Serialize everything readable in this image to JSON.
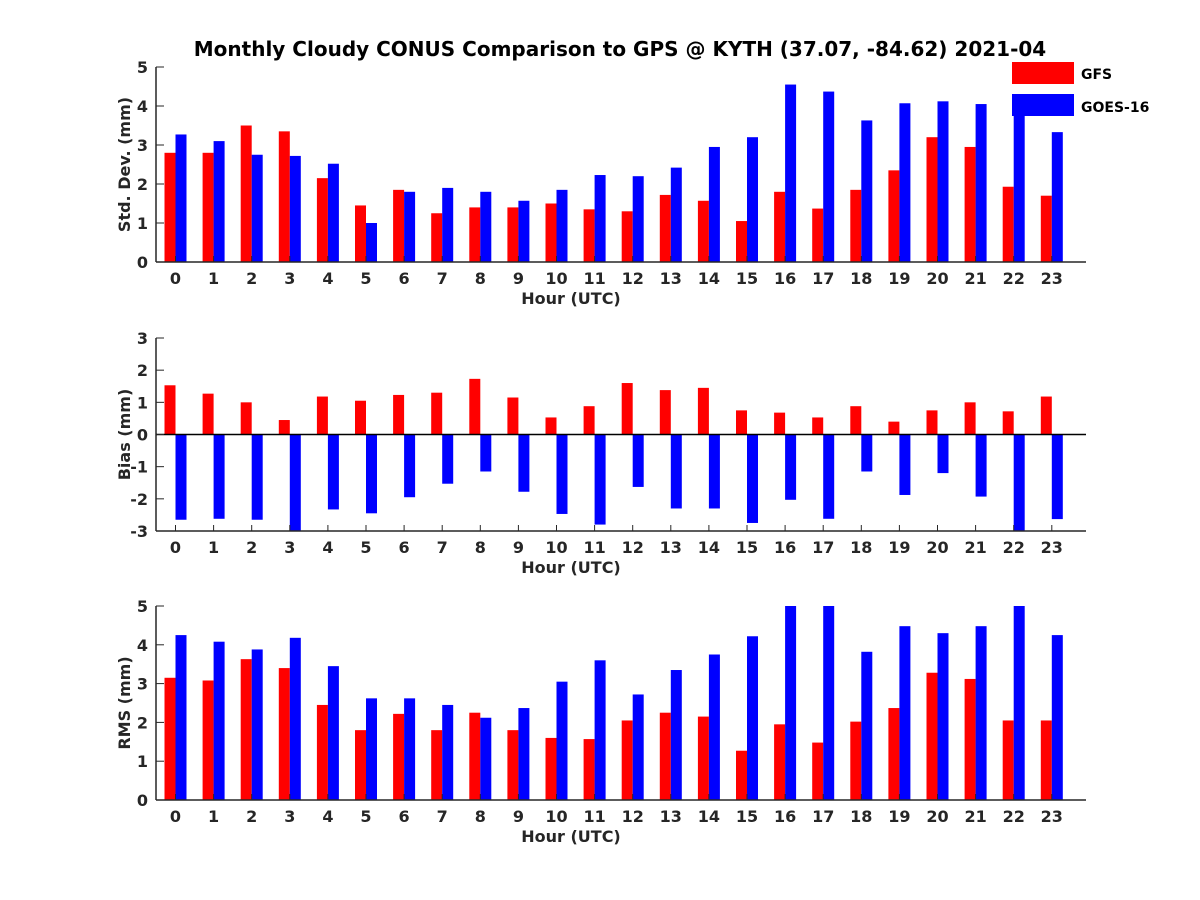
{
  "figure_title": "Monthly Cloudy CONUS Comparison to GPS @ KYTH (37.07, -84.62) 2021-04",
  "legend": {
    "position": "top-right",
    "entries": [
      {
        "label": "GFS",
        "color": "#ff0000"
      },
      {
        "label": "GOES-16",
        "color": "#0000ff"
      }
    ]
  },
  "chart_data": [
    {
      "type": "bar",
      "xlabel": "Hour (UTC)",
      "ylabel": "Std. Dev. (mm)",
      "ylim": [
        0,
        5
      ],
      "yticks": [
        0,
        1,
        2,
        3,
        4,
        5
      ],
      "categories": [
        "0",
        "1",
        "2",
        "3",
        "4",
        "5",
        "6",
        "7",
        "8",
        "9",
        "10",
        "11",
        "12",
        "13",
        "14",
        "15",
        "16",
        "17",
        "18",
        "19",
        "20",
        "21",
        "22",
        "23"
      ],
      "series": [
        {
          "name": "GFS",
          "color": "#ff0000",
          "values": [
            2.8,
            2.8,
            3.5,
            3.35,
            2.15,
            1.45,
            1.85,
            1.25,
            1.4,
            1.4,
            1.5,
            1.35,
            1.3,
            1.72,
            1.57,
            1.05,
            1.8,
            1.37,
            1.85,
            2.35,
            3.2,
            2.95,
            1.93,
            1.7
          ]
        },
        {
          "name": "GOES-16",
          "color": "#0000ff",
          "values": [
            3.27,
            3.1,
            2.75,
            2.72,
            2.52,
            1.0,
            1.8,
            1.9,
            1.8,
            1.57,
            1.85,
            2.23,
            2.2,
            2.42,
            2.95,
            3.2,
            4.55,
            4.37,
            3.63,
            4.07,
            4.12,
            4.05,
            4.07,
            3.33
          ]
        }
      ]
    },
    {
      "type": "bar",
      "xlabel": "Hour (UTC)",
      "ylabel": "Bias (mm)",
      "ylim": [
        -3,
        3
      ],
      "yticks": [
        -3,
        -2,
        -1,
        0,
        1,
        2,
        3
      ],
      "categories": [
        "0",
        "1",
        "2",
        "3",
        "4",
        "5",
        "6",
        "7",
        "8",
        "9",
        "10",
        "11",
        "12",
        "13",
        "14",
        "15",
        "16",
        "17",
        "18",
        "19",
        "20",
        "21",
        "22",
        "23"
      ],
      "series": [
        {
          "name": "GFS",
          "color": "#ff0000",
          "values": [
            1.53,
            1.27,
            1.0,
            0.45,
            1.18,
            1.05,
            1.23,
            1.3,
            1.73,
            1.15,
            0.53,
            0.88,
            1.6,
            1.38,
            1.45,
            0.75,
            0.68,
            0.53,
            0.88,
            0.4,
            0.75,
            1.0,
            0.72,
            1.18
          ]
        },
        {
          "name": "GOES-16",
          "color": "#0000ff",
          "values": [
            -2.65,
            -2.62,
            -2.65,
            -3.0,
            -2.33,
            -2.45,
            -1.95,
            -1.53,
            -1.15,
            -1.78,
            -2.47,
            -2.8,
            -1.63,
            -2.3,
            -2.3,
            -2.75,
            -2.03,
            -2.62,
            -1.15,
            -1.88,
            -1.2,
            -1.93,
            -3.0,
            -2.63
          ]
        }
      ]
    },
    {
      "type": "bar",
      "xlabel": "Hour (UTC)",
      "ylabel": "RMS (mm)",
      "ylim": [
        0,
        5
      ],
      "yticks": [
        0,
        1,
        2,
        3,
        4,
        5
      ],
      "categories": [
        "0",
        "1",
        "2",
        "3",
        "4",
        "5",
        "6",
        "7",
        "8",
        "9",
        "10",
        "11",
        "12",
        "13",
        "14",
        "15",
        "16",
        "17",
        "18",
        "19",
        "20",
        "21",
        "22",
        "23"
      ],
      "series": [
        {
          "name": "GFS",
          "color": "#ff0000",
          "values": [
            3.15,
            3.08,
            3.63,
            3.4,
            2.45,
            1.8,
            2.22,
            1.8,
            2.25,
            1.8,
            1.6,
            1.57,
            2.05,
            2.25,
            2.15,
            1.27,
            1.95,
            1.48,
            2.02,
            2.37,
            3.28,
            3.12,
            2.05,
            2.05
          ]
        },
        {
          "name": "GOES-16",
          "color": "#0000ff",
          "values": [
            4.25,
            4.08,
            3.88,
            4.18,
            3.45,
            2.62,
            2.62,
            2.45,
            2.12,
            2.37,
            3.05,
            3.6,
            2.72,
            3.35,
            3.75,
            4.22,
            5.0,
            5.0,
            3.82,
            4.48,
            4.3,
            4.48,
            5.0,
            4.25
          ]
        }
      ]
    }
  ]
}
